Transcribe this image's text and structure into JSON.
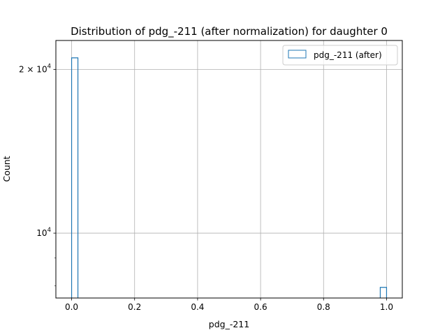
{
  "chart_data": {
    "type": "bar",
    "title": "Distribution of pdg_-211 (after normalization) for daughter 0",
    "xlabel": "pdg_-211",
    "ylabel": "Count",
    "xlim": [
      -0.05,
      1.05
    ],
    "ylim": [
      7600,
      22600
    ],
    "yscale": "log",
    "grid": true,
    "legend_position": "top-right",
    "x_ticks": [
      {
        "value": 0.0,
        "label": "0.0"
      },
      {
        "value": 0.2,
        "label": "0.2"
      },
      {
        "value": 0.4,
        "label": "0.4"
      },
      {
        "value": 0.6,
        "label": "0.6"
      },
      {
        "value": 0.8,
        "label": "0.8"
      },
      {
        "value": 1.0,
        "label": "1.0"
      }
    ],
    "y_major_ticks": [
      {
        "value": 10000,
        "base": "10",
        "exp": "4",
        "coef": ""
      },
      {
        "value": 20000,
        "base": "10",
        "exp": "4",
        "coef": "2 × "
      }
    ],
    "y_minor_ticks": [
      8000,
      9000,
      30000
    ],
    "series": [
      {
        "name": "pdg_-211 (after)",
        "color": "#1f77b4",
        "histtype": "step",
        "bins": [
          {
            "x0": 0.0,
            "x1": 0.02,
            "count": 21000
          },
          {
            "x0": 0.98,
            "x1": 1.0,
            "count": 7950
          }
        ]
      }
    ]
  }
}
